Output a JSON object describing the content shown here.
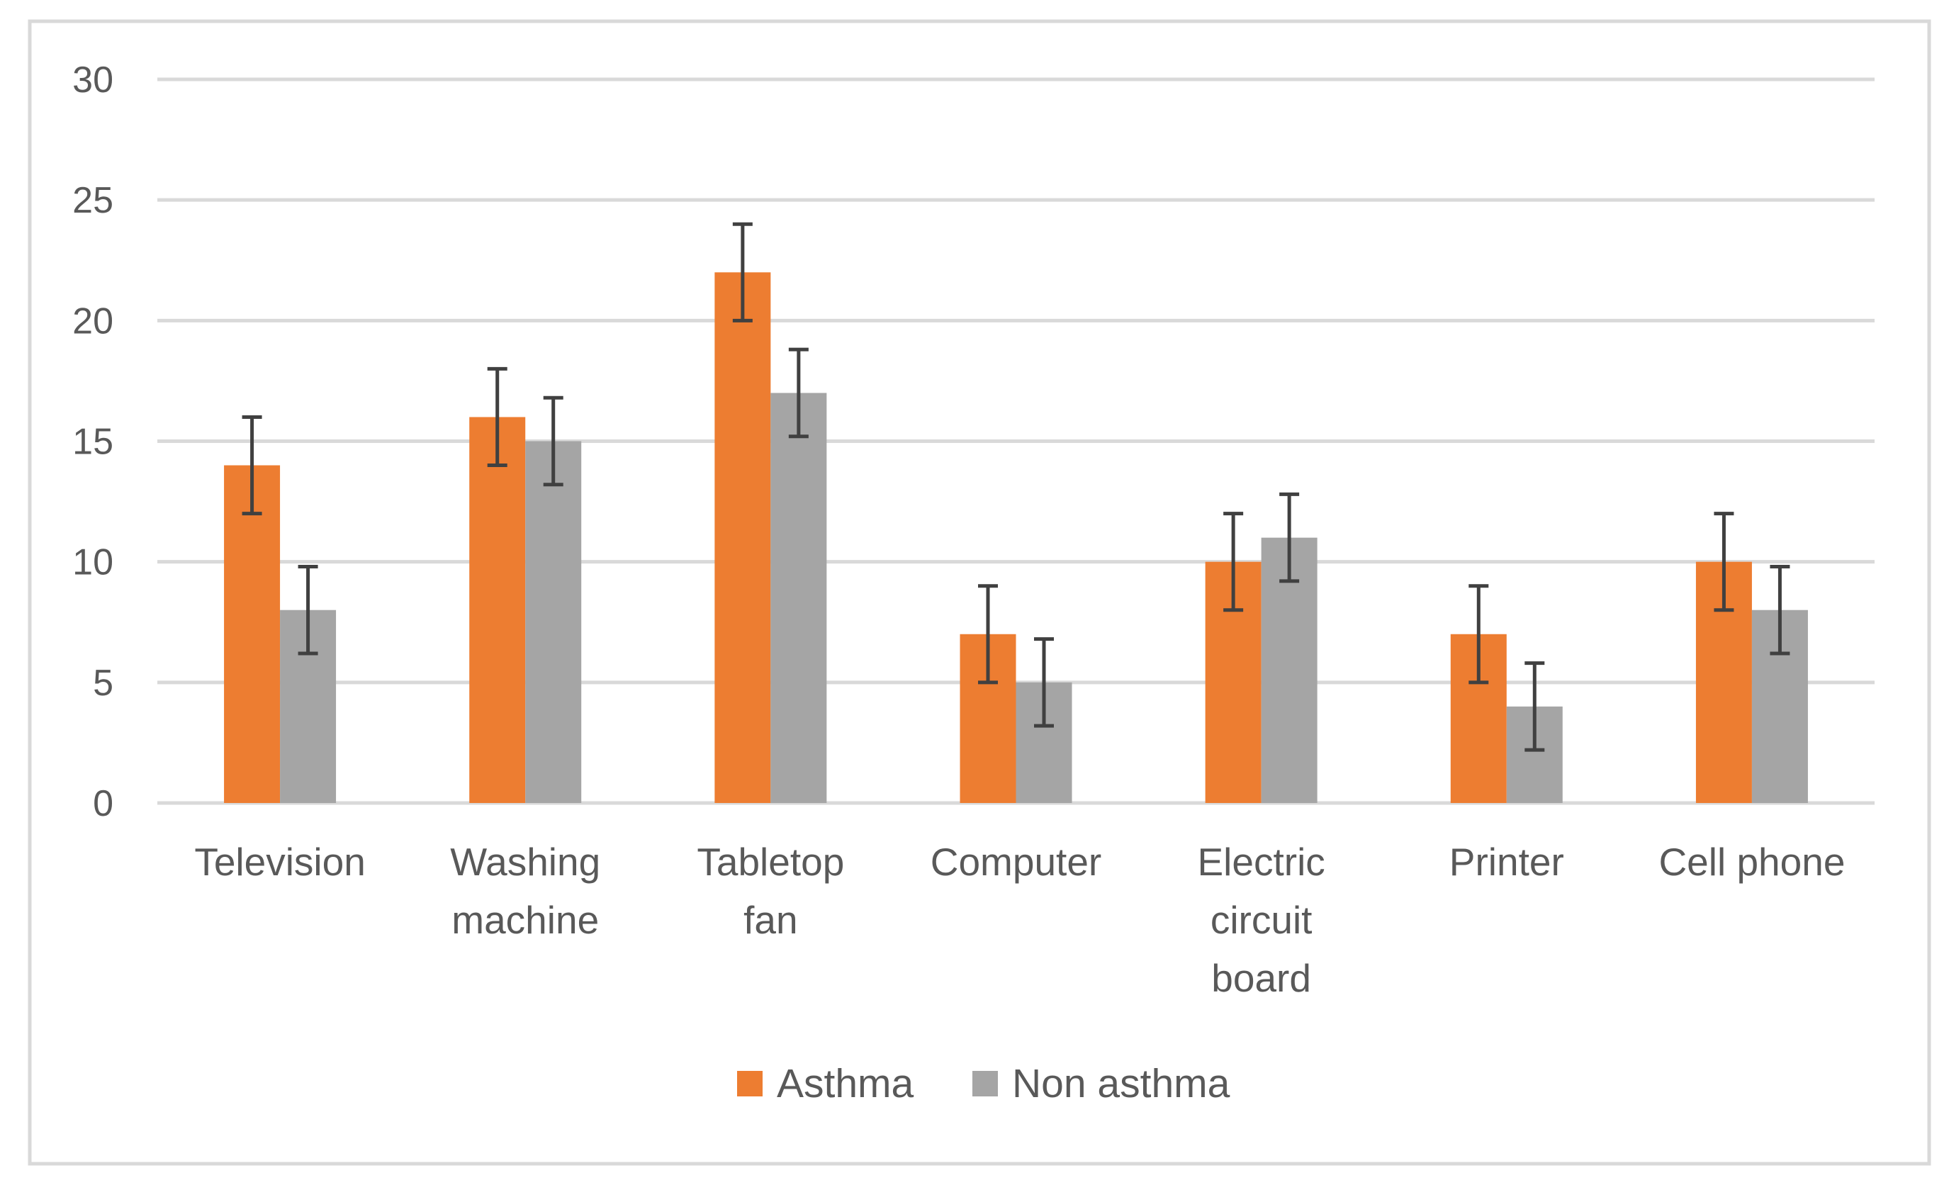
{
  "chart_data": {
    "type": "bar",
    "title": "",
    "xlabel": "",
    "ylabel": "",
    "ylim": [
      0,
      30
    ],
    "yticks": [
      0,
      5,
      10,
      15,
      20,
      25,
      30
    ],
    "grid": true,
    "legend_position": "bottom",
    "categories": [
      [
        "Television"
      ],
      [
        "Washing",
        "machine"
      ],
      [
        "Tabletop",
        "fan"
      ],
      [
        "Computer"
      ],
      [
        "Electric",
        "circuit",
        "board"
      ],
      [
        "Printer"
      ],
      [
        "Cell phone"
      ]
    ],
    "series": [
      {
        "name": "Asthma",
        "color": "#ED7D31",
        "values": [
          14,
          16,
          22,
          7,
          10,
          7,
          10
        ],
        "errors": [
          2,
          2,
          2,
          2,
          2,
          2,
          2
        ]
      },
      {
        "name": "Non asthma",
        "color": "#A5A5A5",
        "values": [
          8,
          15,
          17,
          5,
          11,
          4,
          8
        ],
        "errors": [
          1.8,
          1.8,
          1.8,
          1.8,
          1.8,
          1.8,
          1.8
        ]
      }
    ],
    "colors": {
      "gridline": "#D9D9D9",
      "error_bar": "#404040",
      "text": "#595959",
      "border": "#D9D9D9"
    }
  }
}
